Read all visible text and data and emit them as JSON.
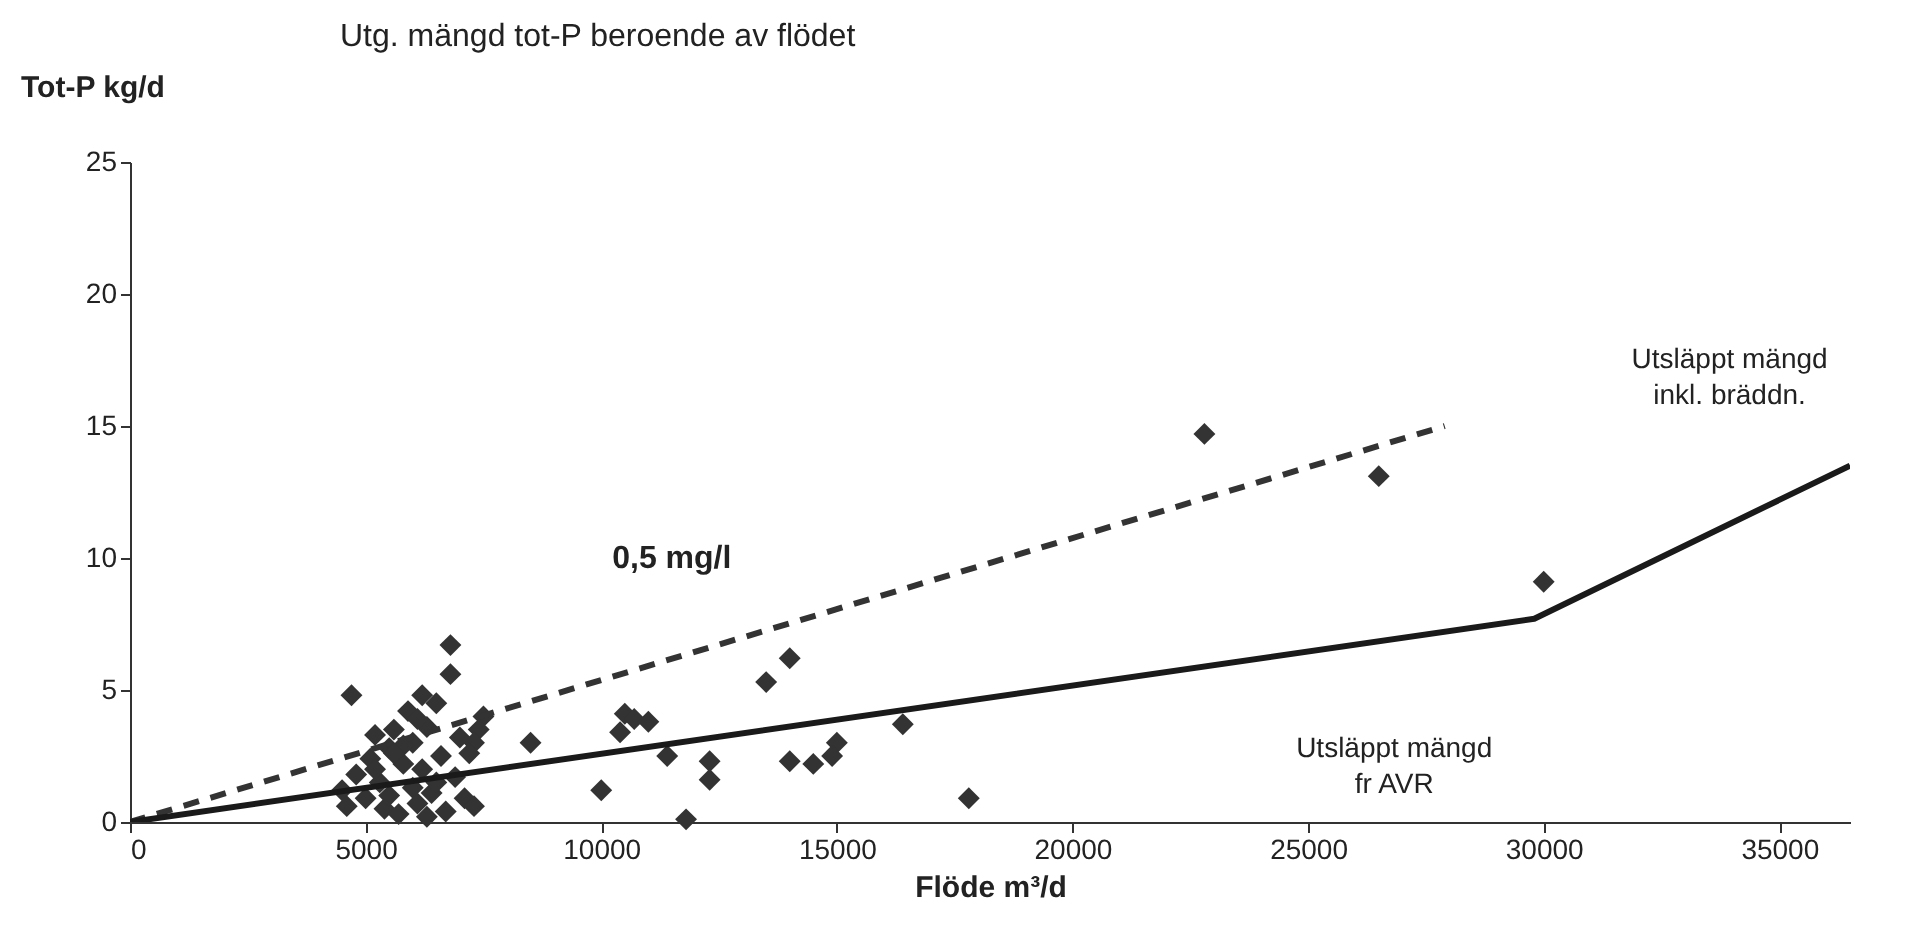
{
  "chart_data": {
    "type": "scatter",
    "title": "Utg. mängd tot-P beroende av flödet",
    "xlabel": "Flöde m³/d",
    "ylabel": "Tot-P kg/d",
    "xlim": [
      0,
      36500
    ],
    "xticks": [
      0,
      5000,
      10000,
      15000,
      20000,
      25000,
      30000,
      35000
    ],
    "ylim": [
      0,
      25
    ],
    "yticks": [
      0,
      5,
      10,
      15,
      20,
      25
    ],
    "marker": "diamond",
    "series": [
      {
        "color": "#333333",
        "x": [
          22800,
          26500,
          30000,
          17800,
          16400,
          15000,
          14900,
          14500,
          14000,
          13500,
          14000,
          12300,
          12300,
          11800,
          11400,
          10500,
          10700,
          11000,
          10400,
          10000,
          8500,
          7500,
          7400,
          7300,
          7200,
          6800,
          6800,
          4700,
          4500,
          4600,
          4800,
          5000,
          5100,
          5200,
          5300,
          5400,
          5500,
          5500,
          5600,
          5700,
          5800,
          5900,
          6000,
          6000,
          6100,
          6200,
          6200,
          6300,
          6400,
          6500,
          6600,
          6700,
          6900,
          7000,
          7100,
          7300,
          5200,
          5800,
          6300,
          6500,
          5600,
          6100
        ],
        "values": [
          14.7,
          13.1,
          9.1,
          0.9,
          3.7,
          3.0,
          2.5,
          2.2,
          6.2,
          5.3,
          2.3,
          2.3,
          1.6,
          0.1,
          2.5,
          4.1,
          3.9,
          3.8,
          3.4,
          1.2,
          3.0,
          4.0,
          3.5,
          3.0,
          2.6,
          6.7,
          5.6,
          4.8,
          1.2,
          0.6,
          1.8,
          0.9,
          2.4,
          3.3,
          1.5,
          0.5,
          2.8,
          1.0,
          3.5,
          0.3,
          2.2,
          4.2,
          1.3,
          3.0,
          0.7,
          4.8,
          2.0,
          3.6,
          1.1,
          4.5,
          2.5,
          0.4,
          1.7,
          3.2,
          0.9,
          0.6,
          2.0,
          2.9,
          0.2,
          1.5,
          2.6,
          3.9
        ]
      },
      {
        "type": "line",
        "marker": "none",
        "line_style": "dashed",
        "color": "#333333",
        "x": [
          0,
          27900
        ],
        "values": [
          0,
          15
        ]
      },
      {
        "type": "line",
        "marker": "none",
        "line_style": "solid",
        "color": "#1a1a1a",
        "x": [
          0,
          29800,
          36500
        ],
        "values": [
          0,
          7.7,
          13.5
        ]
      }
    ],
    "annotations": [
      "0,5 mg/l",
      "Utsläppt mängd inkl. bräddn.",
      "Utsläppt mängd fr AVR"
    ]
  }
}
